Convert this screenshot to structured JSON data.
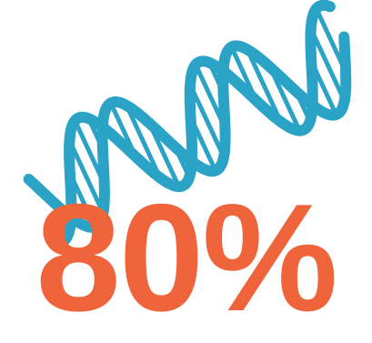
{
  "stat": {
    "value_text": "80%",
    "value": 80,
    "unit": "%"
  },
  "icon": {
    "name": "dna-helix-icon"
  },
  "colors": {
    "dna": "#2ba3c7",
    "stat": "#f0643c",
    "background": "#ffffff"
  }
}
